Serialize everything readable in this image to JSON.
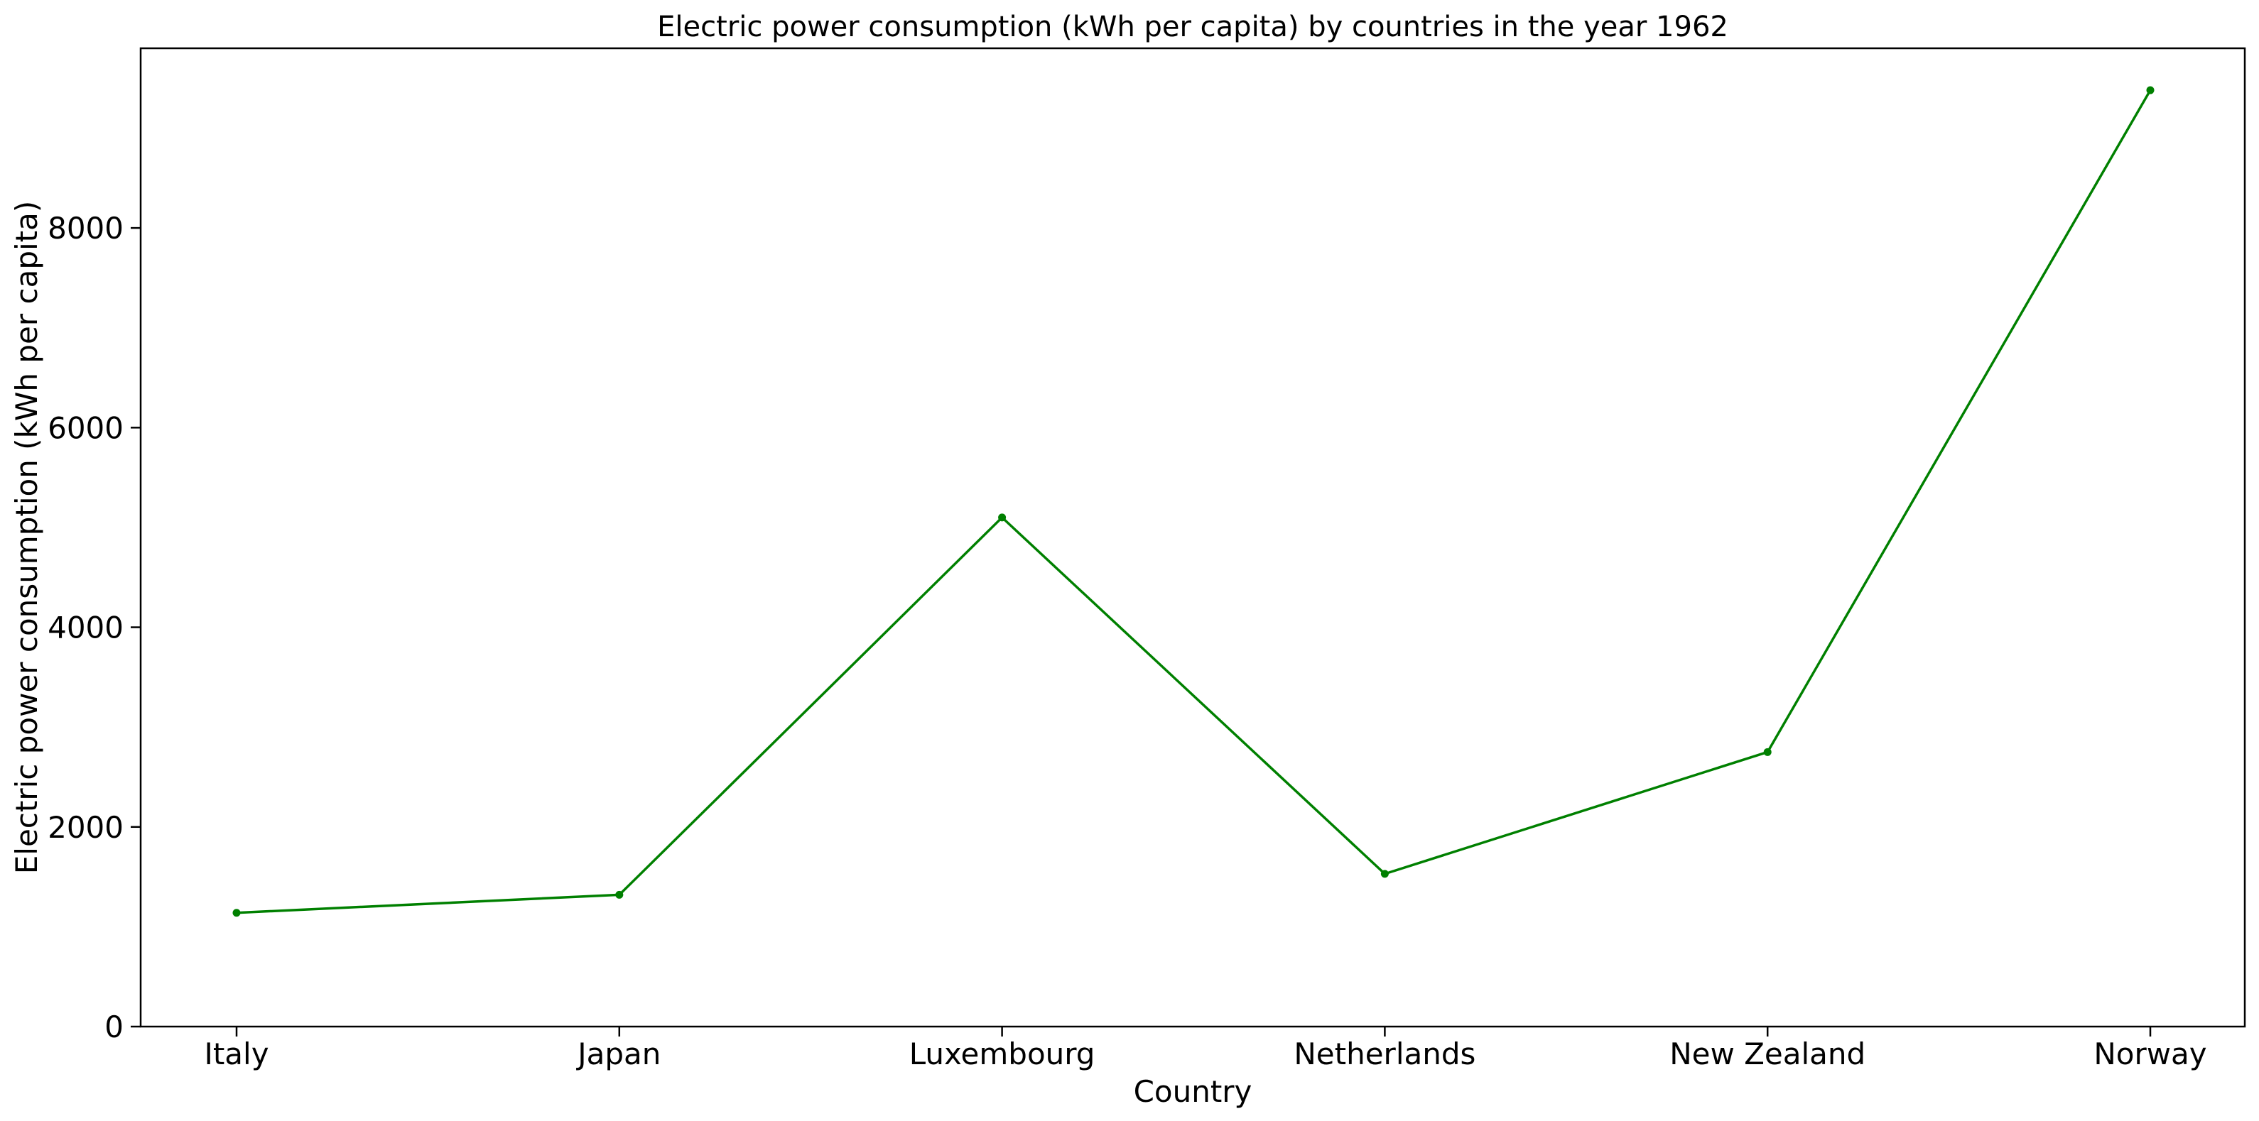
{
  "chart_data": {
    "type": "line",
    "title": "Electric power consumption (kWh per capita) by countries in the year 1962",
    "xlabel": "Country",
    "ylabel": "Electric power consumption (kWh per capita)",
    "categories": [
      "Italy",
      "Japan",
      "Luxembourg",
      "Netherlands",
      "New Zealand",
      "Norway"
    ],
    "series": [
      {
        "values": [
          1140,
          1320,
          5100,
          1530,
          2750,
          9380
        ],
        "color": "#008000",
        "marker": "circle"
      }
    ],
    "ylim": [
      0,
      9800
    ],
    "yticks": [
      0,
      2000,
      4000,
      6000,
      8000
    ],
    "ytick_labels": [
      "0",
      "2000",
      "4000",
      "6000",
      "8000"
    ],
    "grid": false,
    "legend": "none"
  }
}
